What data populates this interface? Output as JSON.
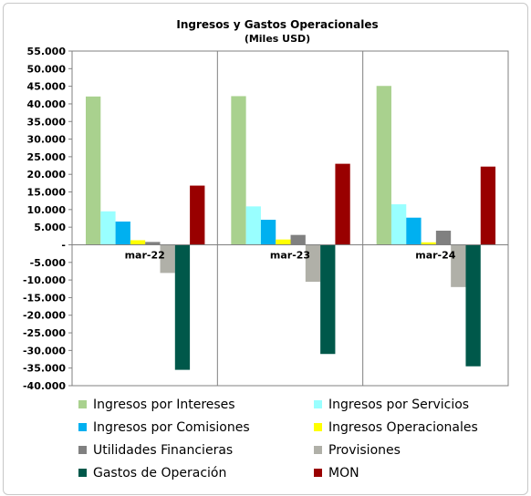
{
  "chart_data": {
    "type": "bar",
    "title": "Ingresos y Gastos Operacionales",
    "subtitle": "(Miles USD)",
    "categories": [
      "mar-22",
      "mar-23",
      "mar-24"
    ],
    "ylim": [
      -40000,
      55000
    ],
    "y_ticks": [
      "55.000",
      "50.000",
      "45.000",
      "40.000",
      "35.000",
      "30.000",
      "25.000",
      "20.000",
      "15.000",
      "10.000",
      "5.000",
      "-",
      "-5.000",
      "-10.000",
      "-15.000",
      "-20.000",
      "-25.000",
      "-30.000",
      "-35.000",
      "-40.000"
    ],
    "grid": "vertical category separators",
    "legend_position": "bottom",
    "series": [
      {
        "name": "Ingresos por Intereses",
        "color": "#a9d18e",
        "values": [
          42100,
          42200,
          45100
        ]
      },
      {
        "name": "Ingresos por Servicios",
        "color": "#99ffff",
        "values": [
          9500,
          10900,
          11500
        ]
      },
      {
        "name": "Ingresos por Comisiones",
        "color": "#00b0f0",
        "values": [
          6600,
          7100,
          7700
        ]
      },
      {
        "name": "Ingresos Operacionales",
        "color": "#ffff00",
        "values": [
          1300,
          1500,
          700
        ]
      },
      {
        "name": "Utilidades Financieras",
        "color": "#808080",
        "values": [
          800,
          2800,
          4000
        ]
      },
      {
        "name": "Provisiones",
        "color": "#b0b0a8",
        "values": [
          -8000,
          -10500,
          -12000
        ]
      },
      {
        "name": "Gastos de Operación",
        "color": "#00584a",
        "values": [
          -35500,
          -31000,
          -34500
        ]
      },
      {
        "name": "MON",
        "color": "#990000",
        "values": [
          16800,
          23000,
          22200
        ]
      }
    ]
  }
}
